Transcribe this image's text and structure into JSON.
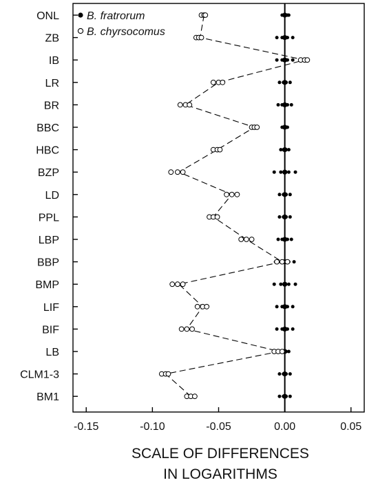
{
  "chart_data": {
    "type": "scatter",
    "title": "",
    "xlabel_lines": [
      "SCALE OF DIFFERENCES",
      "IN LOGARITHMS"
    ],
    "ylabel": "",
    "xlim": [
      -0.16,
      0.06
    ],
    "x_ticks": [
      -0.15,
      -0.1,
      -0.05,
      0.0,
      0.05
    ],
    "x_tick_labels": [
      "-0.15",
      "-0.10",
      "-0.05",
      "0.00",
      "0.05"
    ],
    "reference_line_x": 0.0,
    "grid": false,
    "legend_position": "top-left",
    "categories": [
      "ONL",
      "ZB",
      "IB",
      "LR",
      "BR",
      "BBC",
      "HBC",
      "BZP",
      "LD",
      "PPL",
      "LBP",
      "BBP",
      "BMP",
      "LIF",
      "BIF",
      "LB",
      "CLM1-3",
      "BM1"
    ],
    "series": [
      {
        "name": "B. fratrorum",
        "marker": "filled-circle",
        "connected": false,
        "color": "#000000",
        "points": [
          [
            0.0,
            0.001,
            0.002,
            0.003,
            -0.002
          ],
          [
            -0.006,
            -0.002,
            0.0,
            0.002,
            0.006
          ],
          [
            -0.006,
            -0.002,
            0.0,
            0.002,
            0.006
          ],
          [
            -0.004,
            -0.001,
            0.0,
            0.001,
            0.004
          ],
          [
            -0.005,
            -0.002,
            0.0,
            0.002,
            0.005
          ],
          [
            -0.002,
            -0.001,
            0.0,
            0.001,
            0.002
          ],
          [
            -0.003,
            -0.001,
            0.0,
            0.001,
            0.003
          ],
          [
            -0.008,
            -0.003,
            0.0,
            0.003,
            0.008
          ],
          [
            -0.004,
            -0.001,
            0.0,
            0.001,
            0.004
          ],
          [
            -0.004,
            -0.001,
            0.0,
            0.001,
            0.004
          ],
          [
            -0.005,
            -0.002,
            0.0,
            0.002,
            0.005
          ],
          [
            -0.007,
            -0.003,
            0.0,
            0.003,
            0.007
          ],
          [
            -0.008,
            -0.003,
            0.0,
            0.003,
            0.008
          ],
          [
            -0.006,
            -0.002,
            0.0,
            0.002,
            0.006
          ],
          [
            -0.006,
            -0.002,
            0.0,
            0.002,
            0.006
          ],
          [
            -0.003,
            -0.001,
            0.0,
            0.001,
            0.003
          ],
          [
            -0.004,
            -0.001,
            0.0,
            0.001,
            0.004
          ],
          [
            -0.004,
            -0.001,
            0.0,
            0.001,
            0.004
          ]
        ]
      },
      {
        "name": "B. chyrsocomus",
        "marker": "open-circle",
        "connected": true,
        "line_style": "dashed",
        "color": "#000000",
        "mean": [
          -0.061,
          -0.064,
          0.015,
          -0.05,
          -0.075,
          -0.023,
          -0.051,
          -0.08,
          -0.04,
          -0.054,
          -0.029,
          -0.002,
          -0.08,
          -0.062,
          -0.074,
          -0.004,
          -0.09,
          -0.071
        ],
        "points": [
          [
            -0.063,
            -0.061,
            -0.06
          ],
          [
            -0.067,
            -0.065,
            -0.063
          ],
          [
            0.012,
            0.015,
            0.017
          ],
          [
            -0.054,
            -0.05,
            -0.047
          ],
          [
            -0.079,
            -0.075,
            -0.072
          ],
          [
            -0.025,
            -0.023,
            -0.021
          ],
          [
            -0.054,
            -0.051,
            -0.049
          ],
          [
            -0.086,
            -0.081,
            -0.077
          ],
          [
            -0.044,
            -0.04,
            -0.036
          ],
          [
            -0.057,
            -0.054,
            -0.051
          ],
          [
            -0.033,
            -0.029,
            -0.025
          ],
          [
            -0.006,
            -0.002,
            0.002
          ],
          [
            -0.085,
            -0.081,
            -0.077
          ],
          [
            -0.066,
            -0.062,
            -0.059
          ],
          [
            -0.078,
            -0.074,
            -0.07
          ],
          [
            -0.008,
            -0.005,
            -0.002
          ],
          [
            -0.093,
            -0.09,
            -0.088
          ],
          [
            -0.074,
            -0.071,
            -0.068
          ]
        ]
      }
    ]
  }
}
